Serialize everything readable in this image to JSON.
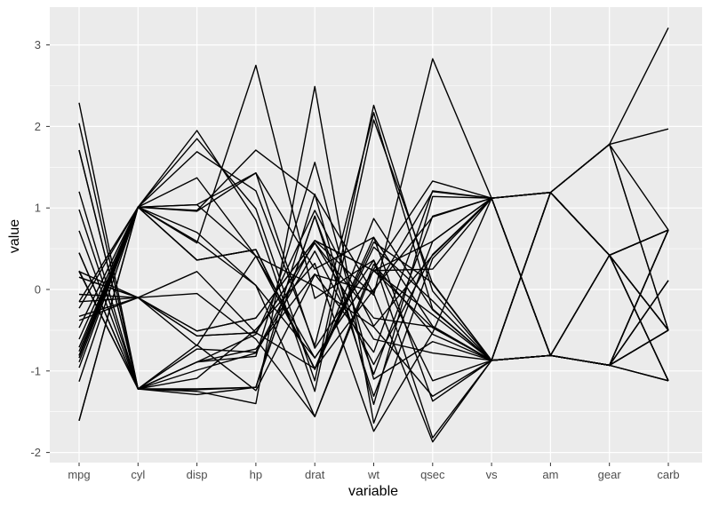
{
  "chart_data": {
    "type": "line",
    "subtype": "parallel-coordinates",
    "title": "",
    "xlabel": "variable",
    "ylabel": "value",
    "categories": [
      "mpg",
      "cyl",
      "disp",
      "hp",
      "drat",
      "wt",
      "qsec",
      "vs",
      "am",
      "gear",
      "carb"
    ],
    "ylim": [
      -2.1,
      3.4
    ],
    "yticks": [
      -2,
      -1,
      0,
      1,
      2,
      3
    ],
    "grid": true,
    "legend": "none",
    "colors": {
      "panel": "#ebebeb",
      "grid": "#ffffff",
      "line": "#000000",
      "tick_text": "#4d4d4d"
    },
    "series": [
      {
        "values": [
          0.15,
          -0.1,
          -0.57,
          -0.53,
          0.57,
          -0.61,
          -0.78,
          -0.87,
          1.19,
          0.42,
          0.73
        ]
      },
      {
        "values": [
          0.15,
          -0.1,
          -0.57,
          -0.53,
          0.57,
          -0.35,
          -0.46,
          -0.87,
          1.19,
          0.42,
          0.73
        ]
      },
      {
        "values": [
          0.45,
          -1.22,
          -0.99,
          -0.78,
          0.47,
          -0.92,
          0.43,
          1.12,
          1.19,
          0.42,
          -1.12
        ]
      },
      {
        "values": [
          0.22,
          -0.1,
          0.22,
          -0.53,
          -0.97,
          -0.0,
          0.89,
          1.12,
          -0.81,
          -0.93,
          -1.12
        ]
      },
      {
        "values": [
          -0.23,
          1.01,
          1.04,
          0.41,
          -0.84,
          0.23,
          -0.47,
          -0.87,
          -0.81,
          -0.93,
          -0.5
        ]
      },
      {
        "values": [
          -0.33,
          -0.1,
          -0.05,
          -0.61,
          -1.56,
          0.25,
          1.33,
          1.12,
          -0.81,
          -0.93,
          -1.12
        ]
      },
      {
        "values": [
          -0.96,
          1.01,
          1.04,
          1.43,
          -0.72,
          0.36,
          -1.12,
          -0.87,
          -0.81,
          -0.93,
          0.73
        ]
      },
      {
        "values": [
          0.72,
          -1.22,
          -0.68,
          -1.24,
          0.18,
          -0.03,
          1.2,
          1.12,
          -0.81,
          0.42,
          -0.5
        ]
      },
      {
        "values": [
          0.45,
          -1.22,
          -0.73,
          -0.77,
          0.6,
          -0.07,
          2.83,
          1.12,
          -0.81,
          0.42,
          -0.5
        ]
      },
      {
        "values": [
          -0.15,
          -0.1,
          -0.51,
          -0.35,
          0.6,
          0.23,
          0.25,
          1.12,
          -0.81,
          0.42,
          0.73
        ]
      },
      {
        "values": [
          -0.38,
          -0.1,
          -0.51,
          -0.35,
          0.6,
          0.23,
          0.59,
          1.12,
          -0.81,
          0.42,
          0.73
        ]
      },
      {
        "values": [
          -0.61,
          1.01,
          0.36,
          0.49,
          -0.98,
          0.87,
          -0.25,
          -0.87,
          -0.81,
          -0.93,
          0.11
        ]
      },
      {
        "values": [
          -0.47,
          1.01,
          0.36,
          0.49,
          -0.98,
          0.52,
          -0.14,
          -0.87,
          -0.81,
          -0.93,
          0.11
        ]
      },
      {
        "values": [
          -0.81,
          1.01,
          0.36,
          0.49,
          -0.98,
          0.58,
          0.08,
          -0.87,
          -0.81,
          -0.93,
          0.11
        ]
      },
      {
        "values": [
          -1.61,
          1.01,
          1.95,
          0.85,
          -1.25,
          2.08,
          0.07,
          -0.87,
          -0.81,
          -0.93,
          0.73
        ]
      },
      {
        "values": [
          -1.61,
          1.01,
          1.85,
          0.99,
          -1.12,
          2.26,
          -0.02,
          -0.87,
          -0.81,
          -0.93,
          0.73
        ]
      },
      {
        "values": [
          -0.89,
          1.01,
          1.69,
          1.21,
          -0.69,
          2.17,
          -0.24,
          -0.87,
          -0.81,
          -0.93,
          0.73
        ]
      },
      {
        "values": [
          2.04,
          -1.22,
          -1.23,
          -1.2,
          0.9,
          -1.04,
          0.9,
          1.12,
          1.19,
          0.42,
          -1.12
        ]
      },
      {
        "values": [
          1.71,
          -1.22,
          -1.25,
          -1.4,
          2.49,
          -1.64,
          0.38,
          1.12,
          1.19,
          0.42,
          -0.5
        ]
      },
      {
        "values": [
          2.29,
          -1.22,
          -1.29,
          -1.2,
          1.17,
          -1.41,
          1.14,
          1.12,
          1.19,
          0.42,
          -1.12
        ]
      },
      {
        "values": [
          0.23,
          -1.22,
          -0.89,
          -0.73,
          0.19,
          -0.77,
          1.21,
          1.12,
          -0.81,
          -0.93,
          -1.12
        ]
      },
      {
        "values": [
          -0.76,
          1.01,
          0.7,
          0.05,
          -1.56,
          0.31,
          -0.55,
          -0.87,
          -0.81,
          -0.93,
          -0.5
        ]
      },
      {
        "values": [
          -0.81,
          1.01,
          0.59,
          0.05,
          -0.84,
          0.23,
          -0.31,
          -0.87,
          -0.81,
          -0.93,
          -0.5
        ]
      },
      {
        "values": [
          -1.13,
          1.01,
          0.96,
          1.43,
          0.25,
          0.64,
          -1.37,
          -0.87,
          -0.81,
          -0.93,
          0.73
        ]
      },
      {
        "values": [
          -0.15,
          1.01,
          1.37,
          0.41,
          -0.97,
          0.64,
          -0.45,
          -0.87,
          -0.81,
          -0.93,
          -0.5
        ]
      },
      {
        "values": [
          1.2,
          -1.22,
          -1.22,
          -1.2,
          0.9,
          -1.31,
          0.59,
          1.12,
          1.19,
          0.42,
          -1.12
        ]
      },
      {
        "values": [
          0.98,
          -1.22,
          -0.89,
          -0.82,
          1.56,
          -1.1,
          -0.64,
          -0.87,
          1.19,
          1.78,
          -0.5
        ]
      },
      {
        "values": [
          1.71,
          -1.22,
          -1.09,
          -0.49,
          0.32,
          -1.74,
          -0.53,
          1.12,
          1.19,
          1.78,
          -0.5
        ]
      },
      {
        "values": [
          -0.71,
          1.01,
          0.97,
          1.71,
          1.16,
          -0.05,
          -1.87,
          -0.87,
          1.19,
          1.78,
          0.73
        ]
      },
      {
        "values": [
          -0.06,
          -0.1,
          -0.69,
          0.41,
          0.04,
          -0.46,
          -1.31,
          -0.87,
          1.19,
          1.78,
          1.97
        ]
      },
      {
        "values": [
          -0.84,
          1.01,
          0.57,
          2.75,
          -0.11,
          0.36,
          -1.82,
          -0.87,
          1.19,
          1.78,
          3.21
        ]
      },
      {
        "values": [
          0.22,
          -1.22,
          -0.89,
          -0.55,
          0.97,
          -0.45,
          0.42,
          1.12,
          1.19,
          0.42,
          -0.5
        ]
      }
    ]
  }
}
